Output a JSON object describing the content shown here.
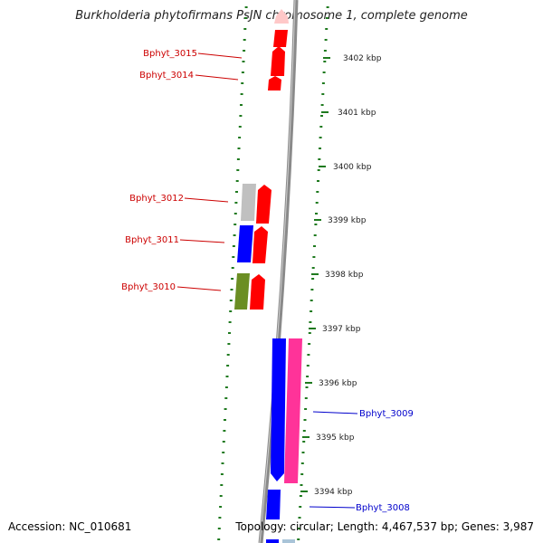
{
  "title": "Burkholderia phytofirmans PsJN chromosome 1, complete genome",
  "footer": {
    "accession": "Accession: NC_010681",
    "stats": "Topology: circular; Length: 4,467,537 bp; Genes: 3,987"
  },
  "colors": {
    "backbone": "#8a8a8a",
    "ticks": "#1f7a1f",
    "label_red": "#cc0000",
    "label_blue": "#0000cc"
  },
  "kbp_labels": [
    "3402 kbp",
    "3401 kbp",
    "3400 kbp",
    "3399 kbp",
    "3398 kbp",
    "3397 kbp",
    "3396 kbp",
    "3395 kbp",
    "3394 kbp"
  ],
  "gene_labels": [
    "Bphyt_3015",
    "Bphyt_3014",
    "Bphyt_3012",
    "Bphyt_3011",
    "Bphyt_3010",
    "Bphyt_3009",
    "Bphyt_3008"
  ],
  "genes": [
    {
      "strand": "forward",
      "color": "#ff0000"
    },
    {
      "strand": "forward",
      "color": "#ff0000"
    },
    {
      "strand": "forward",
      "color": "#ff0000"
    },
    {
      "strand": "forward",
      "color": "#ff0000"
    },
    {
      "strand": "none",
      "color": "#c0c0c0"
    },
    {
      "strand": "forward",
      "color": "#ff0000"
    },
    {
      "strand": "none",
      "color": "#0000ff"
    },
    {
      "strand": "forward",
      "color": "#ff0000"
    },
    {
      "strand": "none",
      "color": "#6b8e23"
    },
    {
      "strand": "forward",
      "color": "#ff0000"
    },
    {
      "strand": "reverse",
      "color": "#0000ff"
    },
    {
      "strand": "none",
      "color": "#ff3399"
    },
    {
      "strand": "none",
      "color": "#0000ff"
    },
    {
      "strand": "none",
      "color": "#a9c4d8"
    }
  ]
}
